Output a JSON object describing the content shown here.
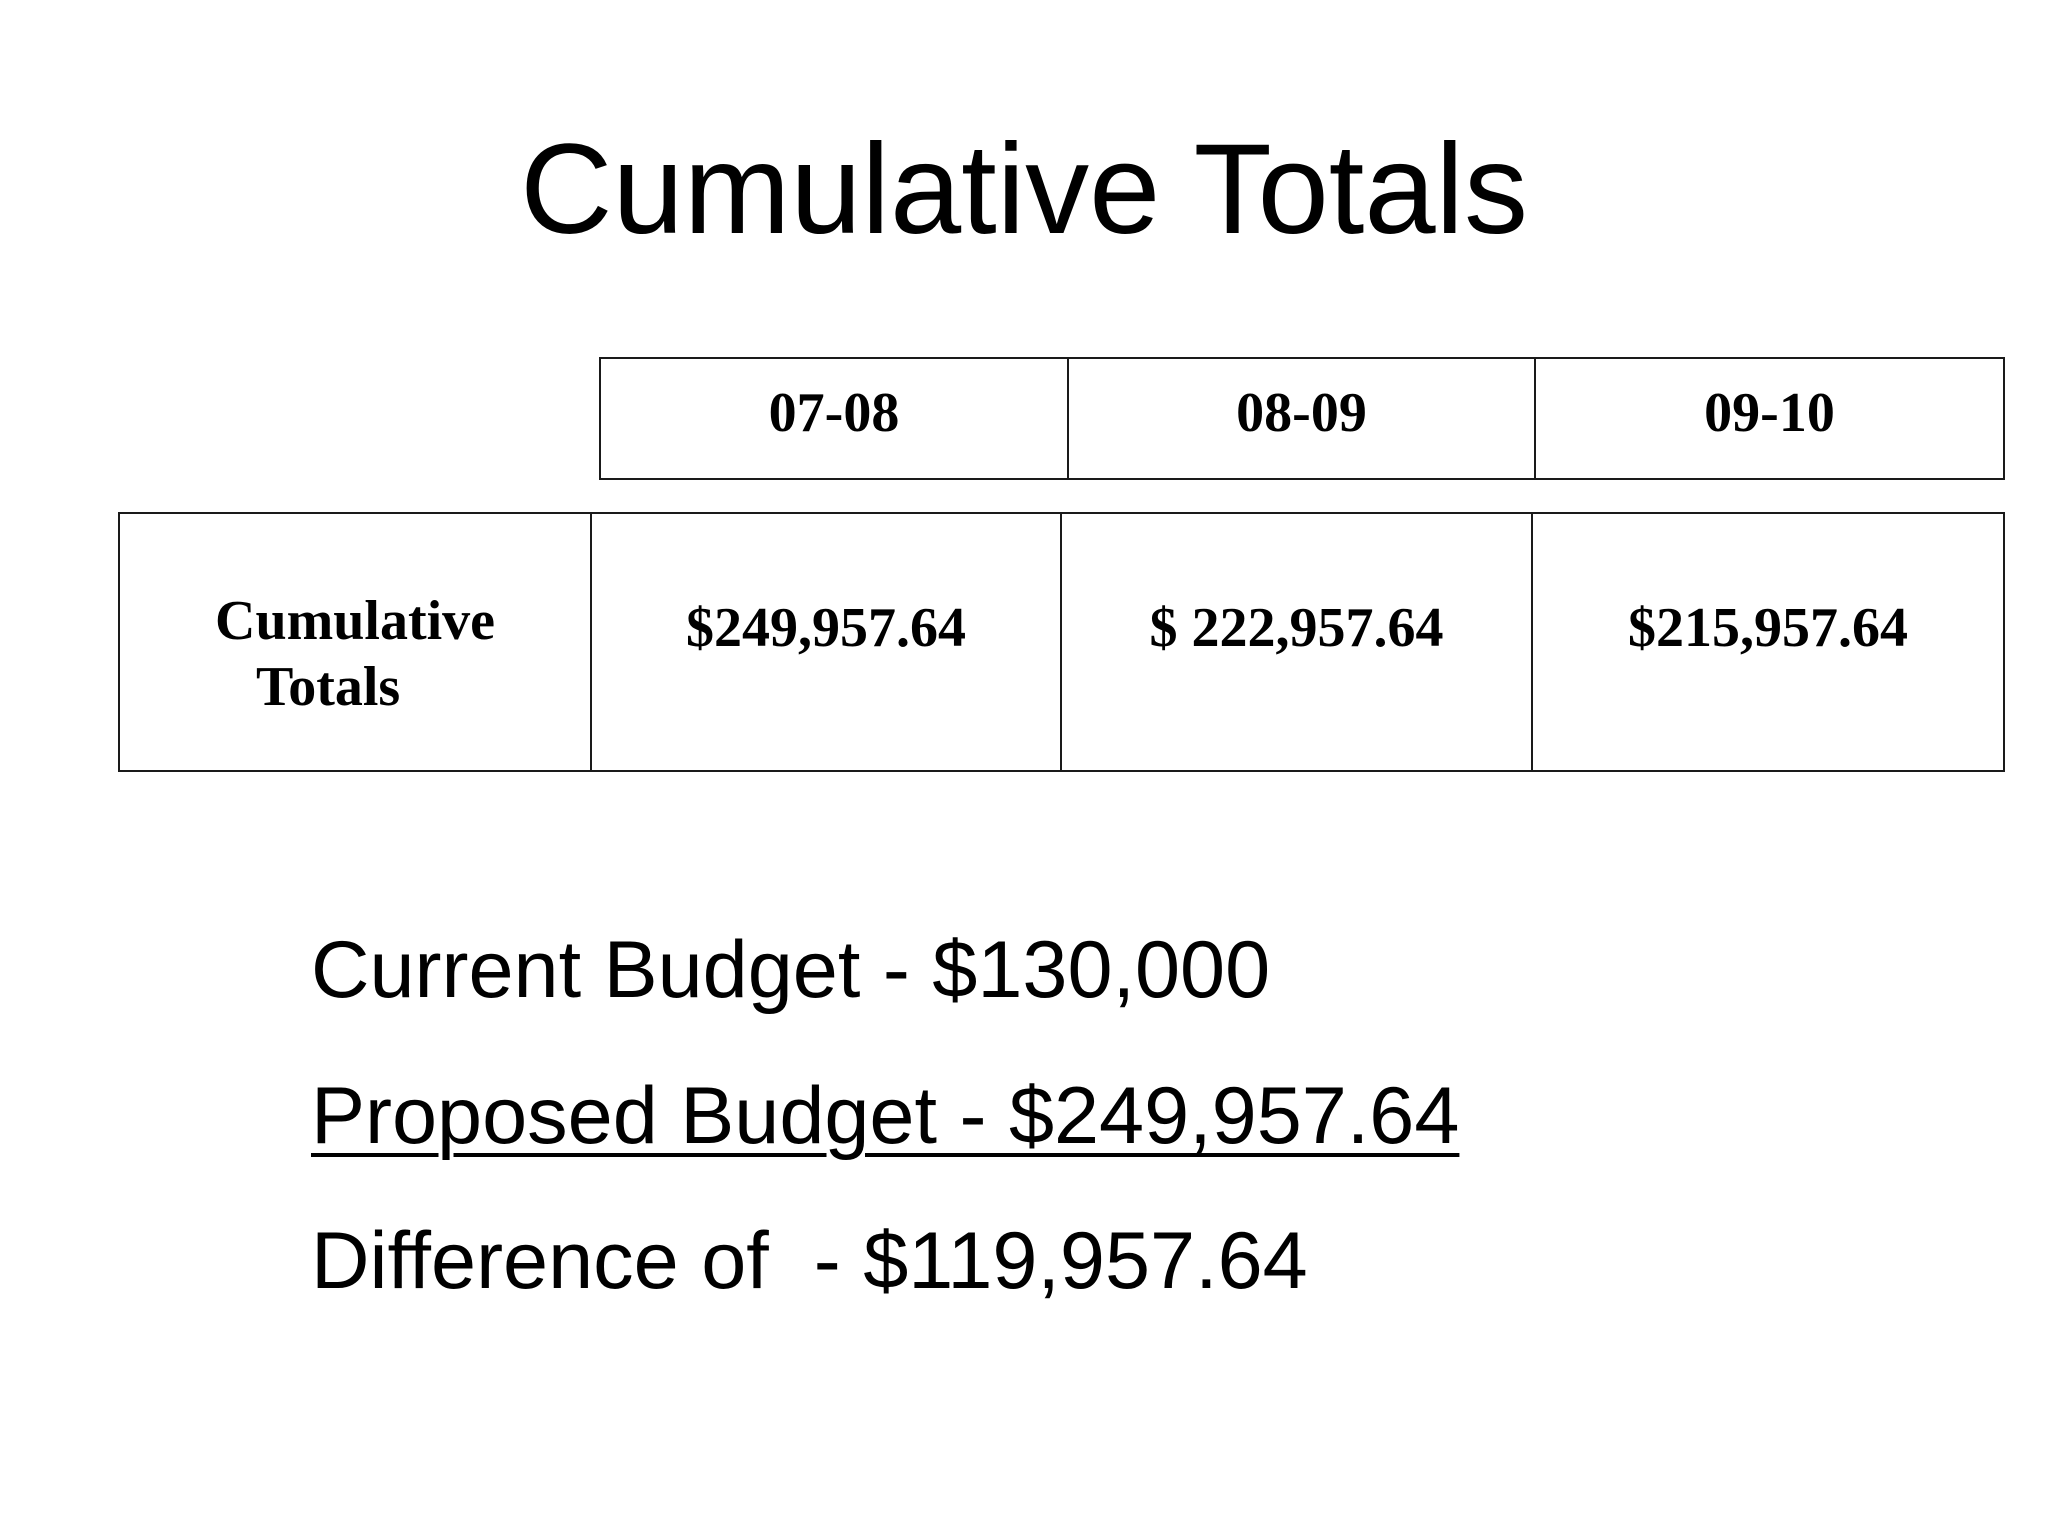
{
  "title": "Cumulative Totals",
  "table": {
    "columns": [
      "07-08",
      "08-09",
      "09-10"
    ],
    "row_label": "Cumulative\n   Totals",
    "values": [
      "$249,957.64",
      "$ 222,957.64",
      "$215,957.64"
    ]
  },
  "summary": {
    "current_budget": "Current Budget - $130,000",
    "proposed_budget": "Proposed Budget - $249,957.64",
    "difference": "Difference of  - $119,957.64"
  }
}
